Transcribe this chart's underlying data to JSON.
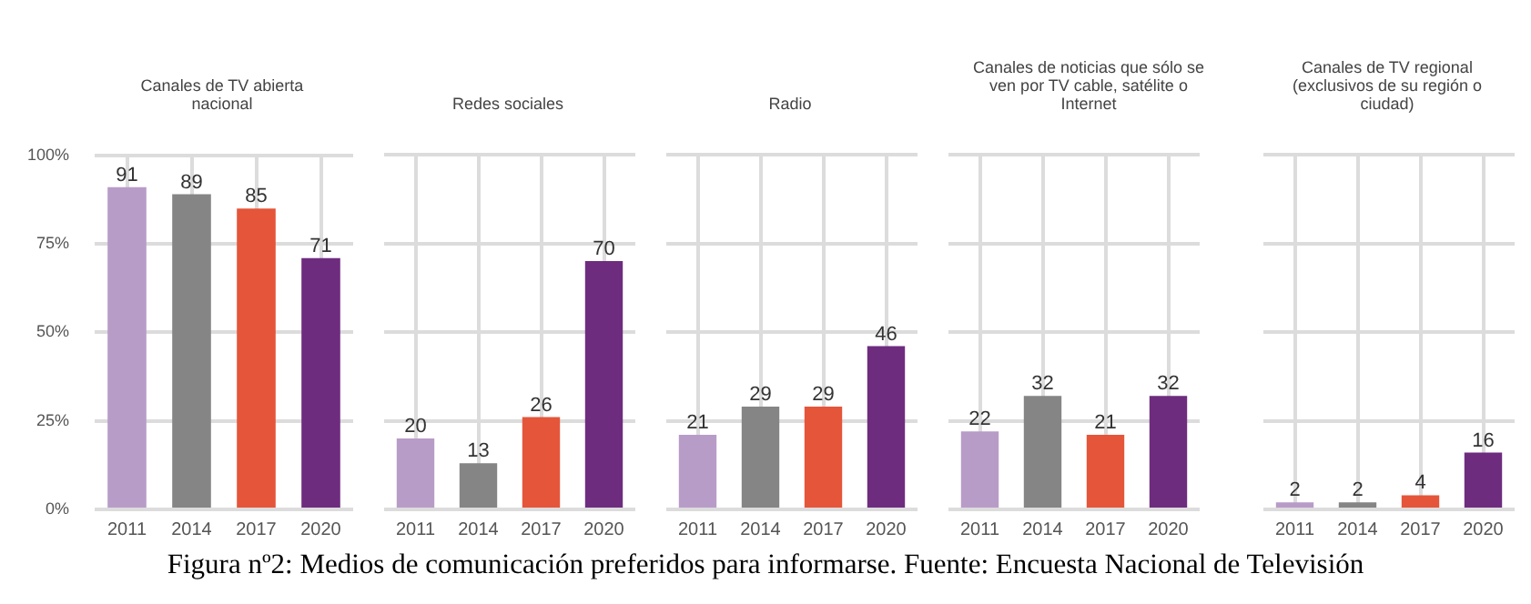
{
  "chart_data": [
    {
      "type": "bar",
      "title": "Canales de TV abierta nacional",
      "categories": [
        "2011",
        "2014",
        "2017",
        "2020"
      ],
      "values": [
        91,
        89,
        85,
        71
      ],
      "colors": [
        "#b89cc8",
        "#858585",
        "#e5553a",
        "#6e2c7f"
      ],
      "ylim": [
        0,
        100
      ],
      "yticks": [
        {
          "value": 0,
          "label": "0%"
        },
        {
          "value": 25,
          "label": "25%"
        },
        {
          "value": 50,
          "label": "50%"
        },
        {
          "value": 75,
          "label": "75%"
        },
        {
          "value": 100,
          "label": "100%"
        }
      ],
      "grid": true,
      "data_labels": true,
      "annotations": [
        "Figura nº2: Medios de comunicación preferidos para informarse. Fuente: Encuesta Nacional de Televisión"
      ]
    },
    {
      "type": "bar",
      "title": "Redes sociales",
      "categories": [
        "2011",
        "2014",
        "2017",
        "2020"
      ],
      "values": [
        20,
        13,
        26,
        70
      ],
      "colors": [
        "#b89cc8",
        "#858585",
        "#e5553a",
        "#6e2c7f"
      ],
      "ylim": [
        0,
        100
      ],
      "yticks": [
        0,
        25,
        50,
        75,
        100
      ],
      "grid": true,
      "data_labels": true,
      "tick_labels": "x"
    },
    {
      "type": "bar",
      "title": "Radio",
      "categories": [
        "2011",
        "2014",
        "2017",
        "2020"
      ],
      "values": [
        21,
        29,
        29,
        46
      ],
      "colors": [
        "#b89cc8",
        "#858585",
        "#e5553a",
        "#6e2c7f"
      ],
      "ylim": [
        0,
        100
      ],
      "yticks": [
        0,
        25,
        50,
        75,
        100
      ],
      "grid": true,
      "data_labels": true,
      "tick_labels": "x"
    },
    {
      "type": "bar",
      "title": "Canales de noticias que sólo se ven por TV cable, satélite o Internet",
      "categories": [
        "2011",
        "2014",
        "2017",
        "2020"
      ],
      "values": [
        22,
        32,
        21,
        32
      ],
      "colors": [
        "#b89cc8",
        "#858585",
        "#e5553a",
        "#6e2c7f"
      ],
      "ylim": [
        0,
        100
      ],
      "yticks": [
        0,
        25,
        50,
        75,
        100
      ],
      "grid": true,
      "data_labels": true,
      "tick_labels": "x"
    },
    {
      "type": "bar",
      "title": "Canales de TV regional (exclusivos de su región o ciudad)",
      "categories": [
        "2011",
        "2014",
        "2017",
        "2020"
      ],
      "values": [
        2,
        2,
        4,
        16
      ],
      "colors": [
        "#b89cc8",
        "#858585",
        "#e5553a",
        "#6e2c7f"
      ],
      "ylim": [
        0,
        100
      ],
      "yticks": [
        0,
        25,
        50,
        75,
        100
      ],
      "grid": true,
      "data_labels": true,
      "tick_labels": "x"
    }
  ]
}
